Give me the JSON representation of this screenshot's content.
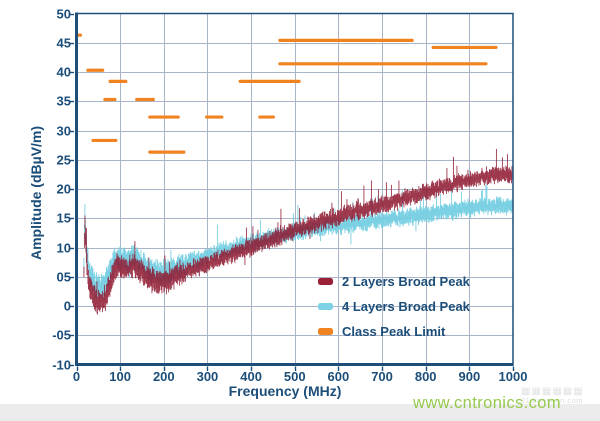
{
  "colors": {
    "axis": "#1c4e79",
    "grid": "#aab4c8",
    "background": "#ffffff",
    "series_red": "#8e1730",
    "series_cyan": "#74cfe2",
    "limit_orange": "#f0831f",
    "watermark_green": "#8dc63f"
  },
  "chart_data": {
    "type": "line",
    "title": "",
    "xlabel": "Frequency (MHz)",
    "ylabel": "Amplitude (dBµV/m)",
    "xlim": [
      0,
      1000
    ],
    "ylim": [
      -10,
      50
    ],
    "grid": true,
    "legend_position": "inside-bottom-right",
    "x_tick_labels": [
      "0",
      "100",
      "200",
      "300",
      "400",
      "500",
      "600",
      "700",
      "800",
      "900",
      "1000"
    ],
    "x_tick_values": [
      0,
      100,
      200,
      300,
      400,
      500,
      600,
      700,
      800,
      900,
      1000
    ],
    "y_tick_labels": [
      "50",
      "45",
      "40",
      "35",
      "30",
      "25",
      "20",
      "15",
      "10",
      "05",
      "0",
      "-05",
      "-10"
    ],
    "y_tick_values": [
      50,
      45,
      40,
      35,
      30,
      25,
      20,
      15,
      10,
      5,
      0,
      -5,
      -10
    ],
    "series": [
      {
        "name": "2 Layers Broad Peak",
        "type": "noisy-emission-trace",
        "color": "#9a2038",
        "points": [
          [
            17,
            6
          ],
          [
            19,
            14.8
          ],
          [
            21,
            11
          ],
          [
            24,
            7
          ],
          [
            28,
            4
          ],
          [
            33,
            2.5
          ],
          [
            40,
            1.5
          ],
          [
            48,
            0.9
          ],
          [
            56,
            0.7
          ],
          [
            63,
            1.2
          ],
          [
            70,
            2.2
          ],
          [
            78,
            4
          ],
          [
            85,
            5.8
          ],
          [
            92,
            6.6
          ],
          [
            100,
            6.9
          ],
          [
            108,
            6.5
          ],
          [
            115,
            6.2
          ],
          [
            122,
            6.6
          ],
          [
            130,
            7.1
          ],
          [
            138,
            6.8
          ],
          [
            147,
            6
          ],
          [
            158,
            5.2
          ],
          [
            170,
            4.6
          ],
          [
            182,
            4.2
          ],
          [
            195,
            4.1
          ],
          [
            208,
            4.4
          ],
          [
            222,
            4.9
          ],
          [
            238,
            5.5
          ],
          [
            255,
            6.1
          ],
          [
            272,
            6.6
          ],
          [
            290,
            7
          ],
          [
            310,
            7.6
          ],
          [
            330,
            8.1
          ],
          [
            355,
            8.8
          ],
          [
            380,
            9.5
          ],
          [
            410,
            10.4
          ],
          [
            440,
            11.2
          ],
          [
            470,
            12
          ],
          [
            500,
            12.9
          ],
          [
            530,
            13.7
          ],
          [
            560,
            14.4
          ],
          [
            590,
            15.1
          ],
          [
            620,
            15.8
          ],
          [
            650,
            16.4
          ],
          [
            680,
            16.9
          ],
          [
            710,
            17.5
          ],
          [
            740,
            18.2
          ],
          [
            770,
            18.8
          ],
          [
            800,
            19.5
          ],
          [
            830,
            20.2
          ],
          [
            860,
            20.8
          ],
          [
            890,
            21.4
          ],
          [
            920,
            21.9
          ],
          [
            945,
            22.3
          ],
          [
            970,
            22.6
          ],
          [
            985,
            22.4
          ],
          [
            1000,
            22.2
          ]
        ]
      },
      {
        "name": "4 Layers Broad Peak",
        "type": "noisy-emission-trace",
        "color": "#7dd3e5",
        "points": [
          [
            17,
            8
          ],
          [
            19,
            16.3
          ],
          [
            21,
            12.5
          ],
          [
            24,
            9
          ],
          [
            28,
            6.5
          ],
          [
            33,
            5
          ],
          [
            40,
            4
          ],
          [
            48,
            3.3
          ],
          [
            56,
            3.1
          ],
          [
            63,
            3.6
          ],
          [
            70,
            4.6
          ],
          [
            78,
            6.2
          ],
          [
            85,
            7.6
          ],
          [
            92,
            8.3
          ],
          [
            100,
            8.5
          ],
          [
            108,
            8.1
          ],
          [
            115,
            7.8
          ],
          [
            122,
            8.1
          ],
          [
            130,
            8.5
          ],
          [
            138,
            8.2
          ],
          [
            147,
            7.4
          ],
          [
            158,
            6.6
          ],
          [
            170,
            6.1
          ],
          [
            182,
            5.8
          ],
          [
            195,
            5.7
          ],
          [
            208,
            6
          ],
          [
            222,
            6.4
          ],
          [
            238,
            6.9
          ],
          [
            255,
            7.4
          ],
          [
            272,
            7.9
          ],
          [
            290,
            8.3
          ],
          [
            310,
            8.8
          ],
          [
            330,
            9.3
          ],
          [
            355,
            9.9
          ],
          [
            380,
            10.5
          ],
          [
            410,
            11.1
          ],
          [
            440,
            11.7
          ],
          [
            470,
            12.2
          ],
          [
            500,
            12.6
          ],
          [
            530,
            13
          ],
          [
            560,
            13.3
          ],
          [
            590,
            13.6
          ],
          [
            620,
            13.9
          ],
          [
            650,
            14.2
          ],
          [
            680,
            14.5
          ],
          [
            710,
            14.8
          ],
          [
            740,
            15.1
          ],
          [
            770,
            15.4
          ],
          [
            800,
            15.7
          ],
          [
            830,
            16
          ],
          [
            860,
            16.3
          ],
          [
            890,
            16.6
          ],
          [
            920,
            16.9
          ],
          [
            945,
            17.1
          ],
          [
            970,
            17.2
          ],
          [
            1000,
            17.1
          ]
        ]
      }
    ],
    "limits": {
      "name": "Class Peak Limit",
      "color": "#f0831f",
      "segments_mhz_db": [
        [
          0,
          9,
          46.3
        ],
        [
          26,
          60,
          40.3
        ],
        [
          77,
          113,
          38.4
        ],
        [
          65,
          88,
          35.3
        ],
        [
          138,
          176,
          35.3
        ],
        [
          168,
          233,
          32.3
        ],
        [
          298,
          333,
          32.3
        ],
        [
          420,
          451,
          32.3
        ],
        [
          38,
          90,
          28.3
        ],
        [
          168,
          246,
          26.3
        ],
        [
          375,
          510,
          38.4
        ],
        [
          466,
          938,
          41.4
        ],
        [
          466,
          769,
          45.4
        ],
        [
          817,
          961,
          44.2
        ]
      ]
    }
  },
  "legend": {
    "items": [
      {
        "label": "2 Layers Broad Peak",
        "color": "#9a2038"
      },
      {
        "label": "4 Layers Broad Peak",
        "color": "#7dd3e5"
      },
      {
        "label": "Class Peak Limit",
        "color": "#f0831f"
      }
    ]
  },
  "watermark": {
    "text": "www.cntronics.com",
    "secondary": "21dianyuan.com",
    "blocks": "▦▦▦▦▦▦"
  }
}
